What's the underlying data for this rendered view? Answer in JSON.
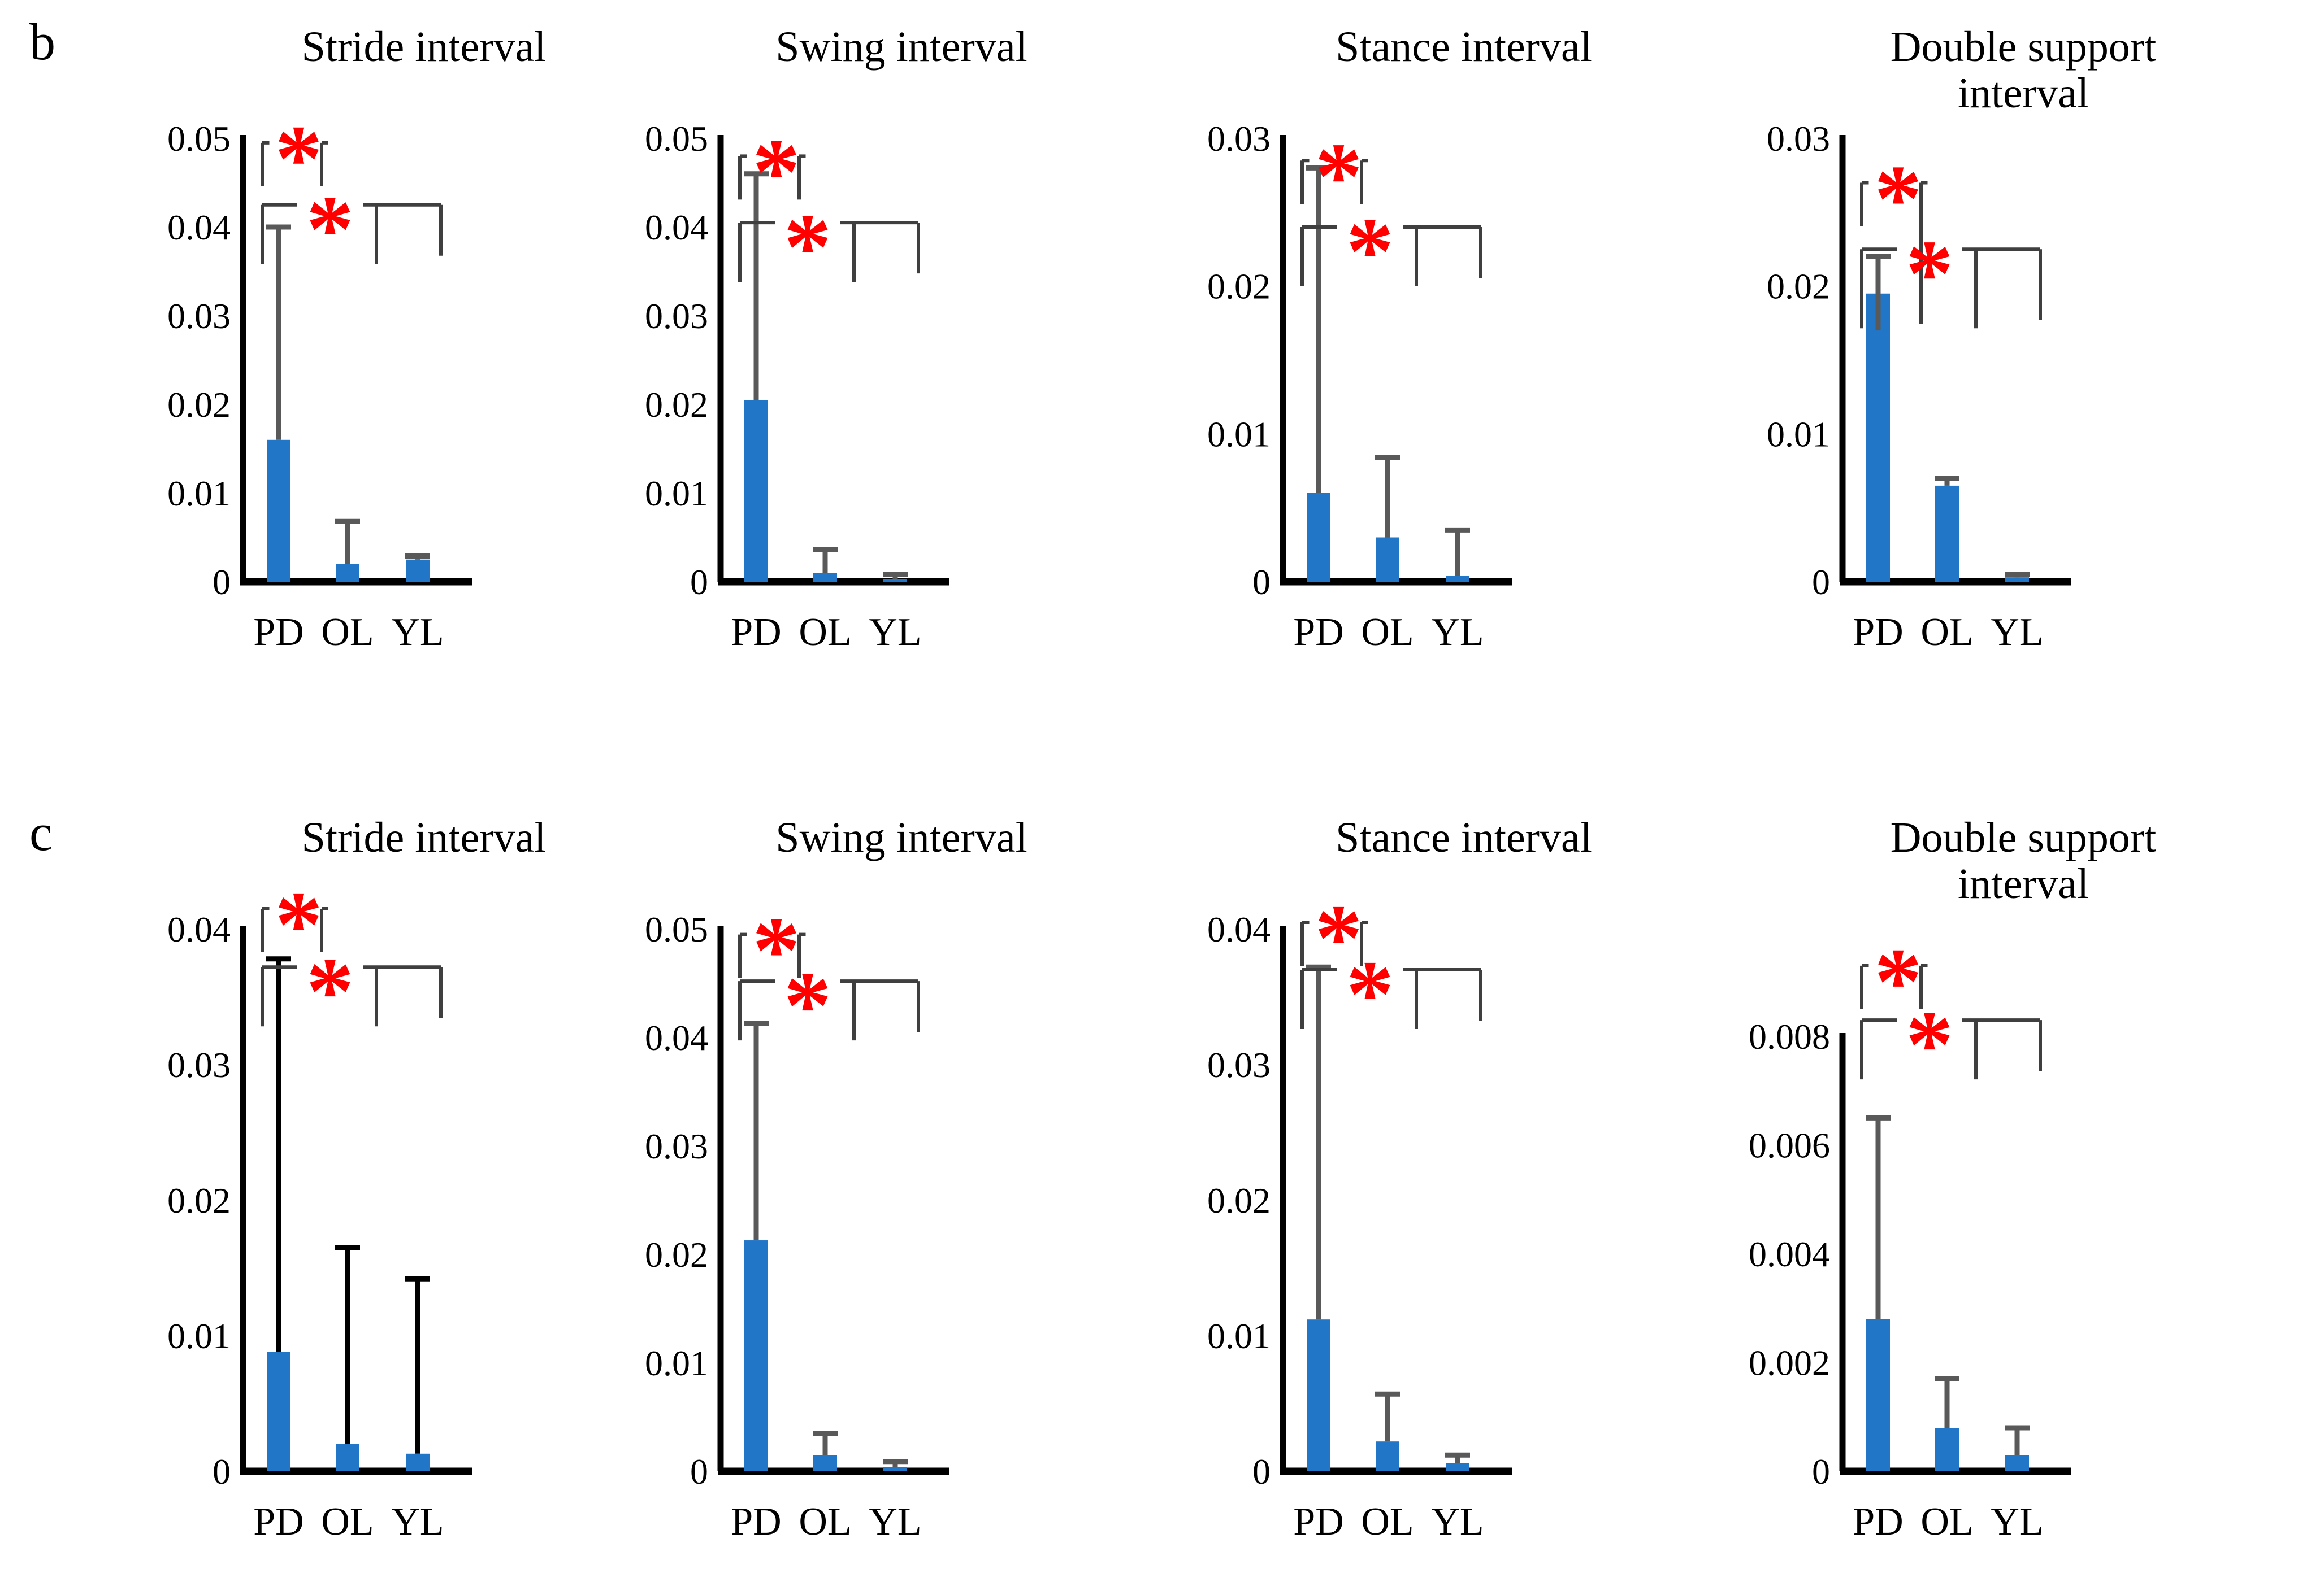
{
  "figure": {
    "panel_b": "b",
    "panel_c": "c"
  },
  "colors": {
    "bar": "#2176C8",
    "error_gray": "#595959",
    "error_black": "#000000",
    "bracket": "#3F3F3F",
    "axis": "#000000",
    "asterisk": "#FF0000",
    "text": "#000000",
    "background": "#FFFFFF"
  },
  "chart_data": [
    {
      "id": "b-stride",
      "panel": "b",
      "row": 0,
      "col": 0,
      "type": "bar",
      "title_lines": [
        "Stride interval"
      ],
      "categories": [
        "PD",
        "OL",
        "YL"
      ],
      "values": [
        0.016,
        0.002,
        0.0025
      ],
      "error_tops": [
        0.04,
        0.0068,
        0.0029
      ],
      "error_bottoms": [
        null,
        null,
        null
      ],
      "error_color": "#595959",
      "ylim": [
        0,
        0.05
      ],
      "ytick_values": [
        0,
        0.01,
        0.02,
        0.03,
        0.04,
        0.05
      ],
      "ytick_labels": [
        "0",
        "0.01",
        "0.02",
        "0.03",
        "0.04",
        "0.05"
      ],
      "grid": false,
      "legend": false,
      "significance": [
        {
          "compare": "PD vs OL",
          "label": "*",
          "bracket_y": 0.0495
        },
        {
          "compare": "PD vs OL,YL",
          "label": "*",
          "bracket_y": 0.0425
        }
      ]
    },
    {
      "id": "b-swing",
      "panel": "b",
      "row": 0,
      "col": 1,
      "type": "bar",
      "title_lines": [
        "Swing interval"
      ],
      "categories": [
        "PD",
        "OL",
        "YL"
      ],
      "values": [
        0.0205,
        0.001,
        0.0003
      ],
      "error_tops": [
        0.046,
        0.0036,
        0.0008
      ],
      "error_bottoms": [
        null,
        null,
        null
      ],
      "error_color": "#595959",
      "ylim": [
        0,
        0.05
      ],
      "ytick_values": [
        0,
        0.01,
        0.02,
        0.03,
        0.04,
        0.05
      ],
      "ytick_labels": [
        "0",
        "0.01",
        "0.02",
        "0.03",
        "0.04",
        "0.05"
      ],
      "grid": false,
      "legend": false,
      "significance": [
        {
          "compare": "PD vs OL",
          "label": "*",
          "bracket_y": 0.048
        },
        {
          "compare": "PD vs OL,YL",
          "label": "*",
          "bracket_y": 0.0405
        }
      ]
    },
    {
      "id": "b-stance",
      "panel": "b",
      "row": 0,
      "col": 2,
      "type": "bar",
      "title_lines": [
        "Stance interval"
      ],
      "categories": [
        "PD",
        "OL",
        "YL"
      ],
      "values": [
        0.006,
        0.003,
        0.0004
      ],
      "error_tops": [
        0.028,
        0.0084,
        0.0035
      ],
      "error_bottoms": [
        null,
        null,
        null
      ],
      "error_color": "#595959",
      "ylim": [
        0,
        0.03
      ],
      "ytick_values": [
        0,
        0.01,
        0.02,
        0.03
      ],
      "ytick_labels": [
        "0",
        "0.01",
        "0.02",
        "0.03"
      ],
      "grid": false,
      "legend": false,
      "significance": [
        {
          "compare": "PD vs OL",
          "label": "*",
          "bracket_y": 0.0285
        },
        {
          "compare": "PD vs OL,YL",
          "label": "*",
          "bracket_y": 0.024
        }
      ]
    },
    {
      "id": "b-double-support",
      "panel": "b",
      "row": 0,
      "col": 3,
      "type": "bar",
      "title_lines": [
        "Double support",
        "interval"
      ],
      "categories": [
        "PD",
        "OL",
        "YL"
      ],
      "values": [
        0.0195,
        0.0065,
        0.0003
      ],
      "error_tops": [
        0.022,
        0.007,
        0.0005
      ],
      "error_bottoms": [
        0.017,
        null,
        null
      ],
      "error_color": "#595959",
      "ylim": [
        0,
        0.03
      ],
      "ytick_values": [
        0,
        0.01,
        0.02,
        0.03
      ],
      "ytick_labels": [
        "0",
        "0.01",
        "0.02",
        "0.03"
      ],
      "grid": false,
      "legend": false,
      "br1_drop_right": 250,
      "br2_drop": 140,
      "significance": [
        {
          "compare": "PD vs OL",
          "label": "*",
          "bracket_y": 0.027
        },
        {
          "compare": "PD vs OL,YL",
          "label": "*",
          "bracket_y": 0.0225
        }
      ]
    },
    {
      "id": "c-stride",
      "panel": "c",
      "row": 1,
      "col": 0,
      "type": "bar",
      "title_lines": [
        "Stride interval"
      ],
      "categories": [
        "PD",
        "OL",
        "YL"
      ],
      "values": [
        0.0088,
        0.002,
        0.0013
      ],
      "error_tops": [
        0.0378,
        0.0165,
        0.0142
      ],
      "error_bottoms": [
        null,
        null,
        null
      ],
      "error_color": "#000000",
      "ylim": [
        0,
        0.04
      ],
      "ytick_values": [
        0,
        0.01,
        0.02,
        0.03,
        0.04
      ],
      "ytick_labels": [
        "0",
        "0.01",
        "0.02",
        "0.03",
        "0.04"
      ],
      "grid": false,
      "legend": false,
      "significance": [
        {
          "compare": "PD vs OL",
          "label": "*",
          "bracket_y": 0.0415
        },
        {
          "compare": "PD vs OL,YL",
          "label": "*",
          "bracket_y": 0.0372
        }
      ]
    },
    {
      "id": "c-swing",
      "panel": "c",
      "row": 1,
      "col": 1,
      "type": "bar",
      "title_lines": [
        "Swing interval"
      ],
      "categories": [
        "PD",
        "OL",
        "YL"
      ],
      "values": [
        0.0213,
        0.0015,
        0.0004
      ],
      "error_tops": [
        0.0413,
        0.0035,
        0.0009
      ],
      "error_bottoms": [
        null,
        null,
        null
      ],
      "error_color": "#595959",
      "ylim": [
        0,
        0.05
      ],
      "ytick_values": [
        0,
        0.01,
        0.02,
        0.03,
        0.04,
        0.05
      ],
      "ytick_labels": [
        "0",
        "0.01",
        "0.02",
        "0.03",
        "0.04",
        "0.05"
      ],
      "grid": false,
      "legend": false,
      "significance": [
        {
          "compare": "PD vs OL",
          "label": "*",
          "bracket_y": 0.0495
        },
        {
          "compare": "PD vs OL,YL",
          "label": "*",
          "bracket_y": 0.0452
        }
      ]
    },
    {
      "id": "c-stance",
      "panel": "c",
      "row": 1,
      "col": 2,
      "type": "bar",
      "title_lines": [
        "Stance interval"
      ],
      "categories": [
        "PD",
        "OL",
        "YL"
      ],
      "values": [
        0.0112,
        0.0022,
        0.0006
      ],
      "error_tops": [
        0.0372,
        0.0057,
        0.0012
      ],
      "error_bottoms": [
        null,
        null,
        null
      ],
      "error_color": "#595959",
      "ylim": [
        0,
        0.04
      ],
      "ytick_values": [
        0,
        0.01,
        0.02,
        0.03,
        0.04
      ],
      "ytick_labels": [
        "0",
        "0.01",
        "0.02",
        "0.03",
        "0.04"
      ],
      "grid": false,
      "legend": false,
      "significance": [
        {
          "compare": "PD vs OL",
          "label": "*",
          "bracket_y": 0.0405
        },
        {
          "compare": "PD vs OL,YL",
          "label": "*",
          "bracket_y": 0.037
        }
      ]
    },
    {
      "id": "c-double-support",
      "panel": "c",
      "row": 1,
      "col": 3,
      "type": "bar",
      "title_lines": [
        "Double support",
        "interval"
      ],
      "categories": [
        "PD",
        "OL",
        "YL"
      ],
      "values": [
        0.0028,
        0.0008,
        0.0003
      ],
      "error_tops": [
        0.0065,
        0.0017,
        0.0008
      ],
      "error_bottoms": [
        null,
        null,
        null
      ],
      "error_color": "#595959",
      "ylim": [
        0,
        0.008
      ],
      "ytick_values": [
        0,
        0.002,
        0.004,
        0.006,
        0.008
      ],
      "ytick_labels": [
        "0",
        "0.002",
        "0.004",
        "0.006",
        "0.008"
      ],
      "grid": false,
      "legend": false,
      "top_pad": 190,
      "significance": [
        {
          "compare": "PD vs OL",
          "label": "*",
          "bracket_y": 0.0093
        },
        {
          "compare": "PD vs OL,YL",
          "label": "*",
          "bracket_y": 0.0083
        }
      ]
    }
  ]
}
